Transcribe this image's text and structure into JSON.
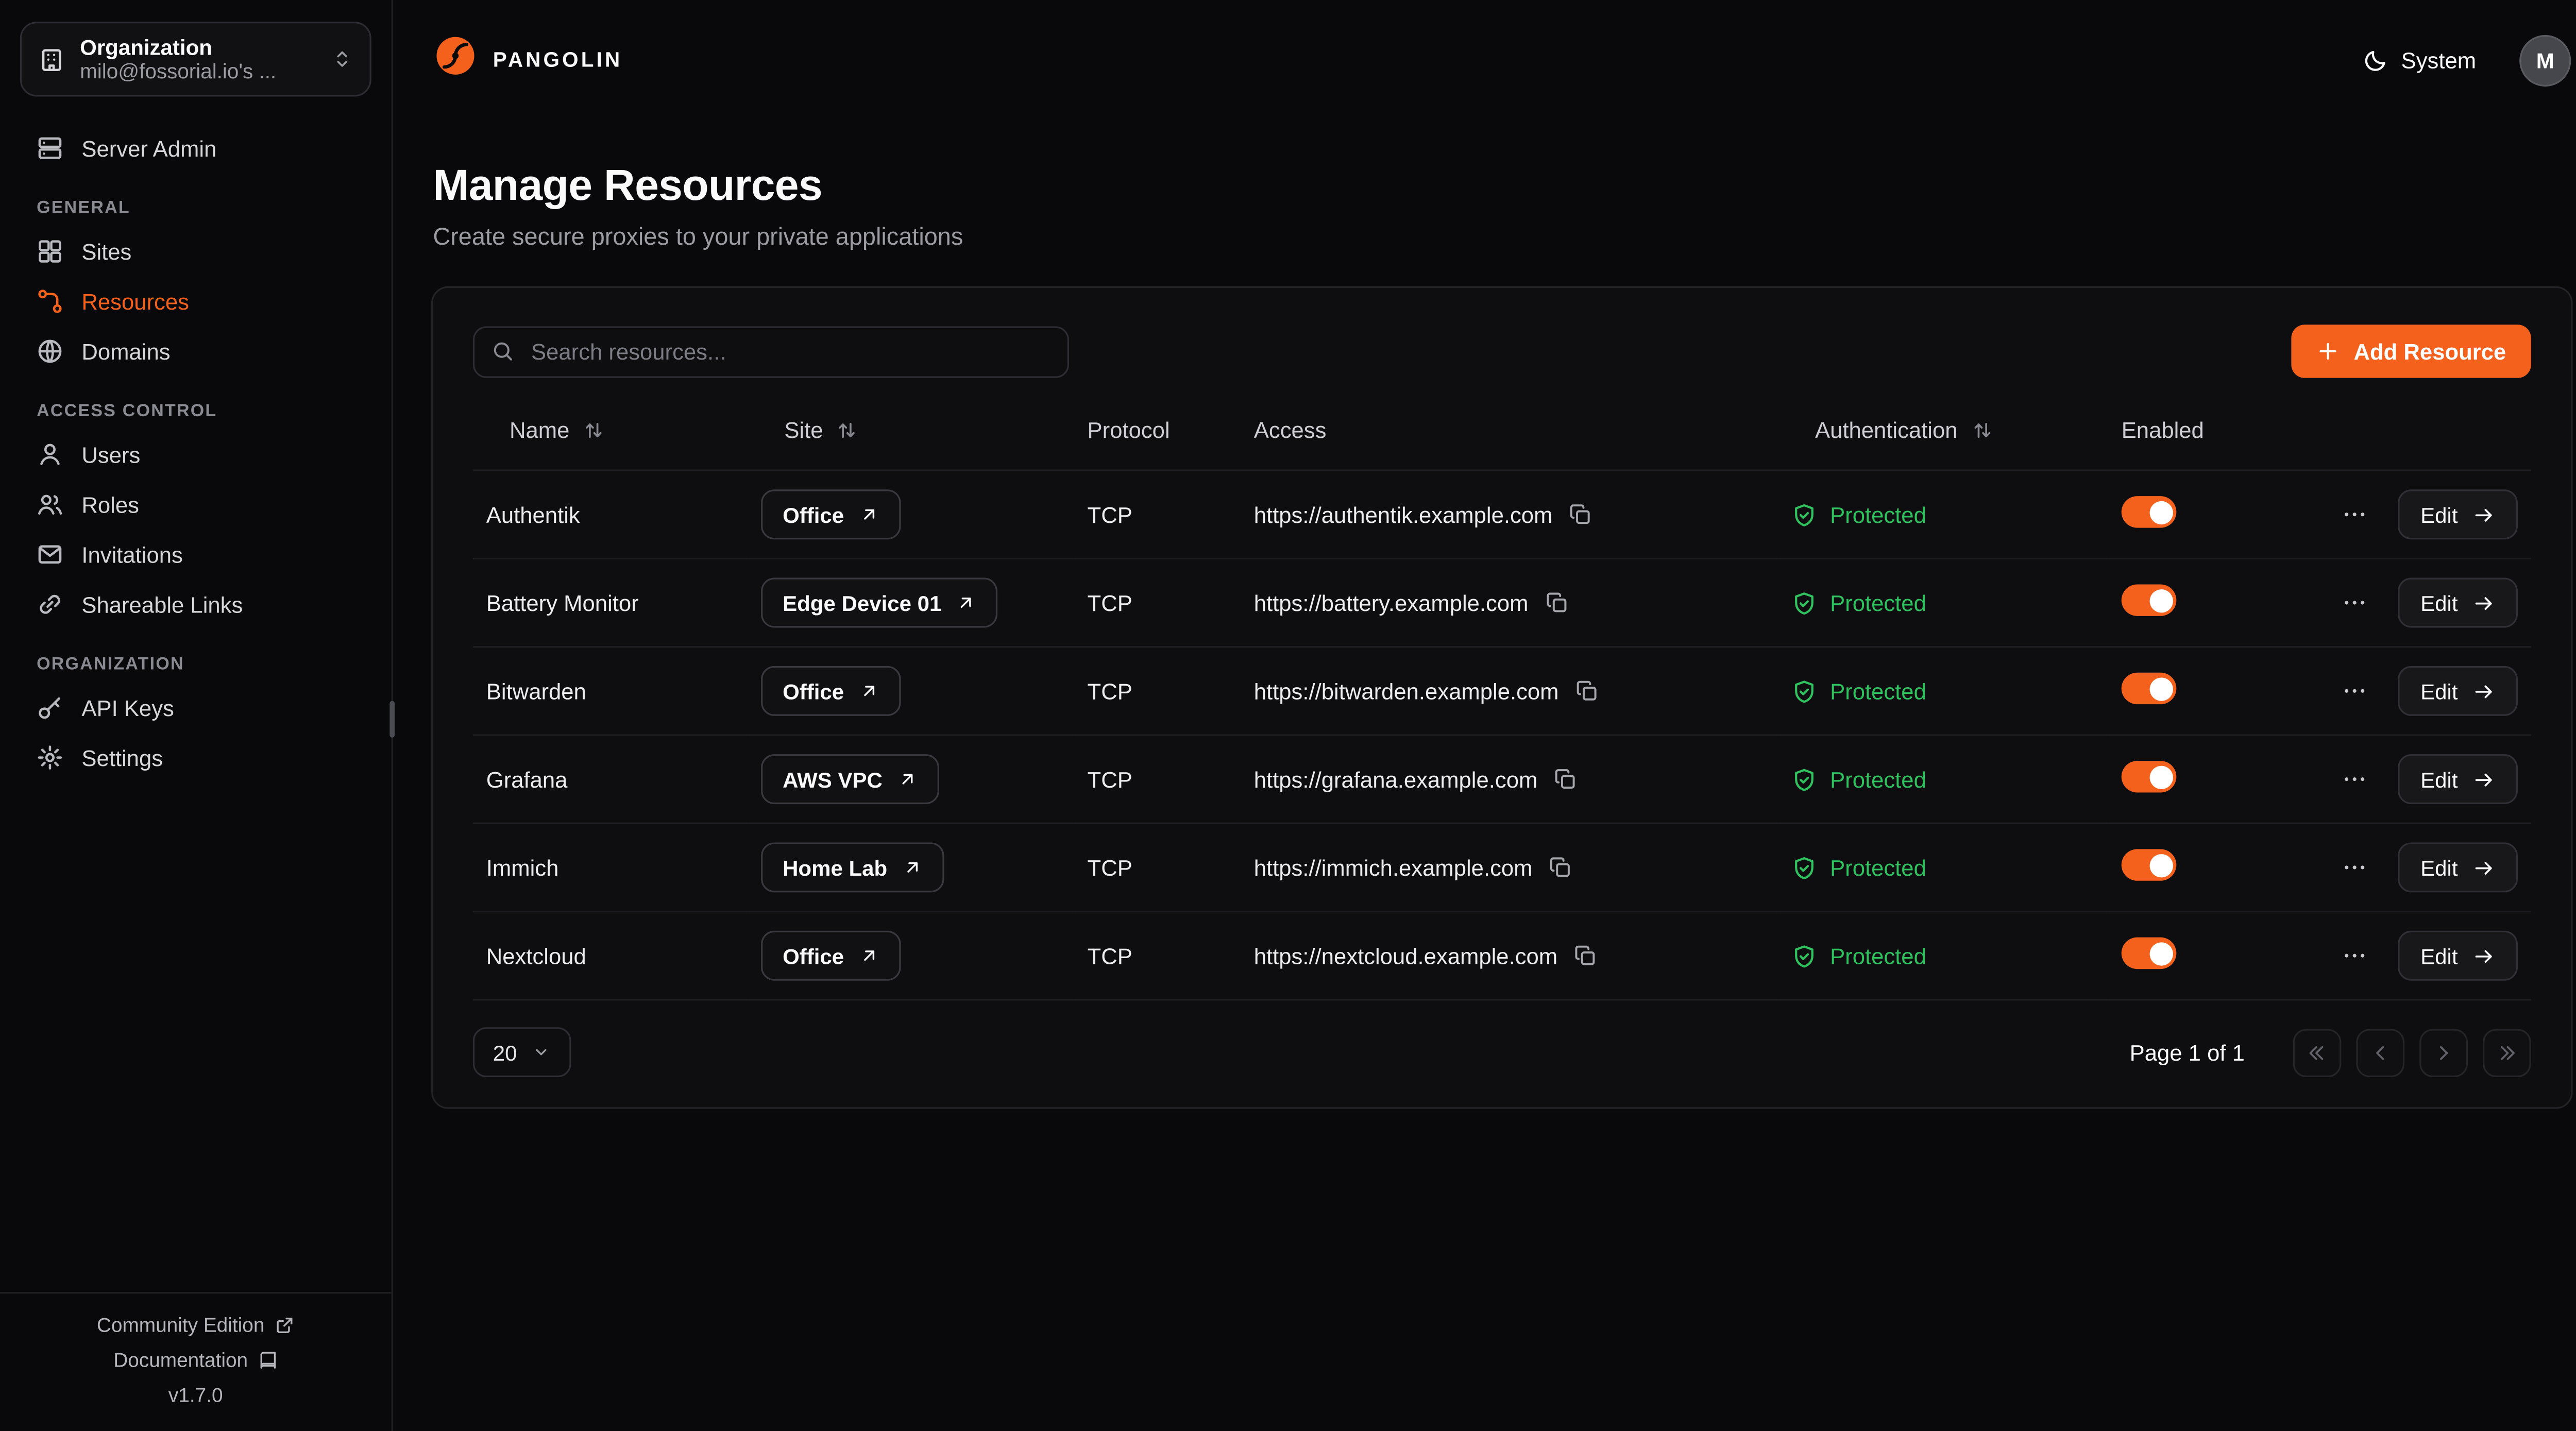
{
  "brand": {
    "name": "PANGOLIN"
  },
  "header": {
    "theme_label": "System",
    "avatar_initial": "M"
  },
  "sidebar": {
    "org_switcher": {
      "label": "Organization",
      "value": "milo@fossorial.io's ..."
    },
    "server_admin": {
      "label": "Server Admin",
      "icon": "server"
    },
    "sections": [
      {
        "title": "GENERAL",
        "items": [
          {
            "label": "Sites",
            "icon": "sites"
          },
          {
            "label": "Resources",
            "icon": "resources",
            "active": true
          },
          {
            "label": "Domains",
            "icon": "globe"
          }
        ]
      },
      {
        "title": "ACCESS CONTROL",
        "items": [
          {
            "label": "Users",
            "icon": "user"
          },
          {
            "label": "Roles",
            "icon": "users"
          },
          {
            "label": "Invitations",
            "icon": "mail"
          },
          {
            "label": "Shareable Links",
            "icon": "link"
          }
        ]
      },
      {
        "title": "ORGANIZATION",
        "items": [
          {
            "label": "API Keys",
            "icon": "key"
          },
          {
            "label": "Settings",
            "icon": "settings"
          }
        ]
      }
    ],
    "footer": {
      "community": "Community Edition",
      "documentation": "Documentation",
      "version": "v1.7.0"
    }
  },
  "page": {
    "title": "Manage Resources",
    "subtitle": "Create secure proxies to your private applications"
  },
  "toolbar": {
    "search_placeholder": "Search resources...",
    "add_button": "Add Resource"
  },
  "table": {
    "edit_label": "Edit",
    "columns": [
      {
        "label": "Name",
        "sortable": true
      },
      {
        "label": "Site",
        "sortable": true
      },
      {
        "label": "Protocol",
        "sortable": false
      },
      {
        "label": "Access",
        "sortable": false
      },
      {
        "label": "Authentication",
        "sortable": true
      },
      {
        "label": "Enabled",
        "sortable": false
      }
    ],
    "rows": [
      {
        "name": "Authentik",
        "site": "Office",
        "protocol": "TCP",
        "access": "https://authentik.example.com",
        "auth": "Protected",
        "enabled": true
      },
      {
        "name": "Battery Monitor",
        "site": "Edge Device 01",
        "protocol": "TCP",
        "access": "https://battery.example.com",
        "auth": "Protected",
        "enabled": true
      },
      {
        "name": "Bitwarden",
        "site": "Office",
        "protocol": "TCP",
        "access": "https://bitwarden.example.com",
        "auth": "Protected",
        "enabled": true
      },
      {
        "name": "Grafana",
        "site": "AWS VPC",
        "protocol": "TCP",
        "access": "https://grafana.example.com",
        "auth": "Protected",
        "enabled": true
      },
      {
        "name": "Immich",
        "site": "Home Lab",
        "protocol": "TCP",
        "access": "https://immich.example.com",
        "auth": "Protected",
        "enabled": true
      },
      {
        "name": "Nextcloud",
        "site": "Office",
        "protocol": "TCP",
        "access": "https://nextcloud.example.com",
        "auth": "Protected",
        "enabled": true
      }
    ]
  },
  "pagination": {
    "page_size": "20",
    "page_info": "Page 1 of 1"
  },
  "theme": {
    "accent": "#F4611D",
    "success": "#2FC25F"
  }
}
